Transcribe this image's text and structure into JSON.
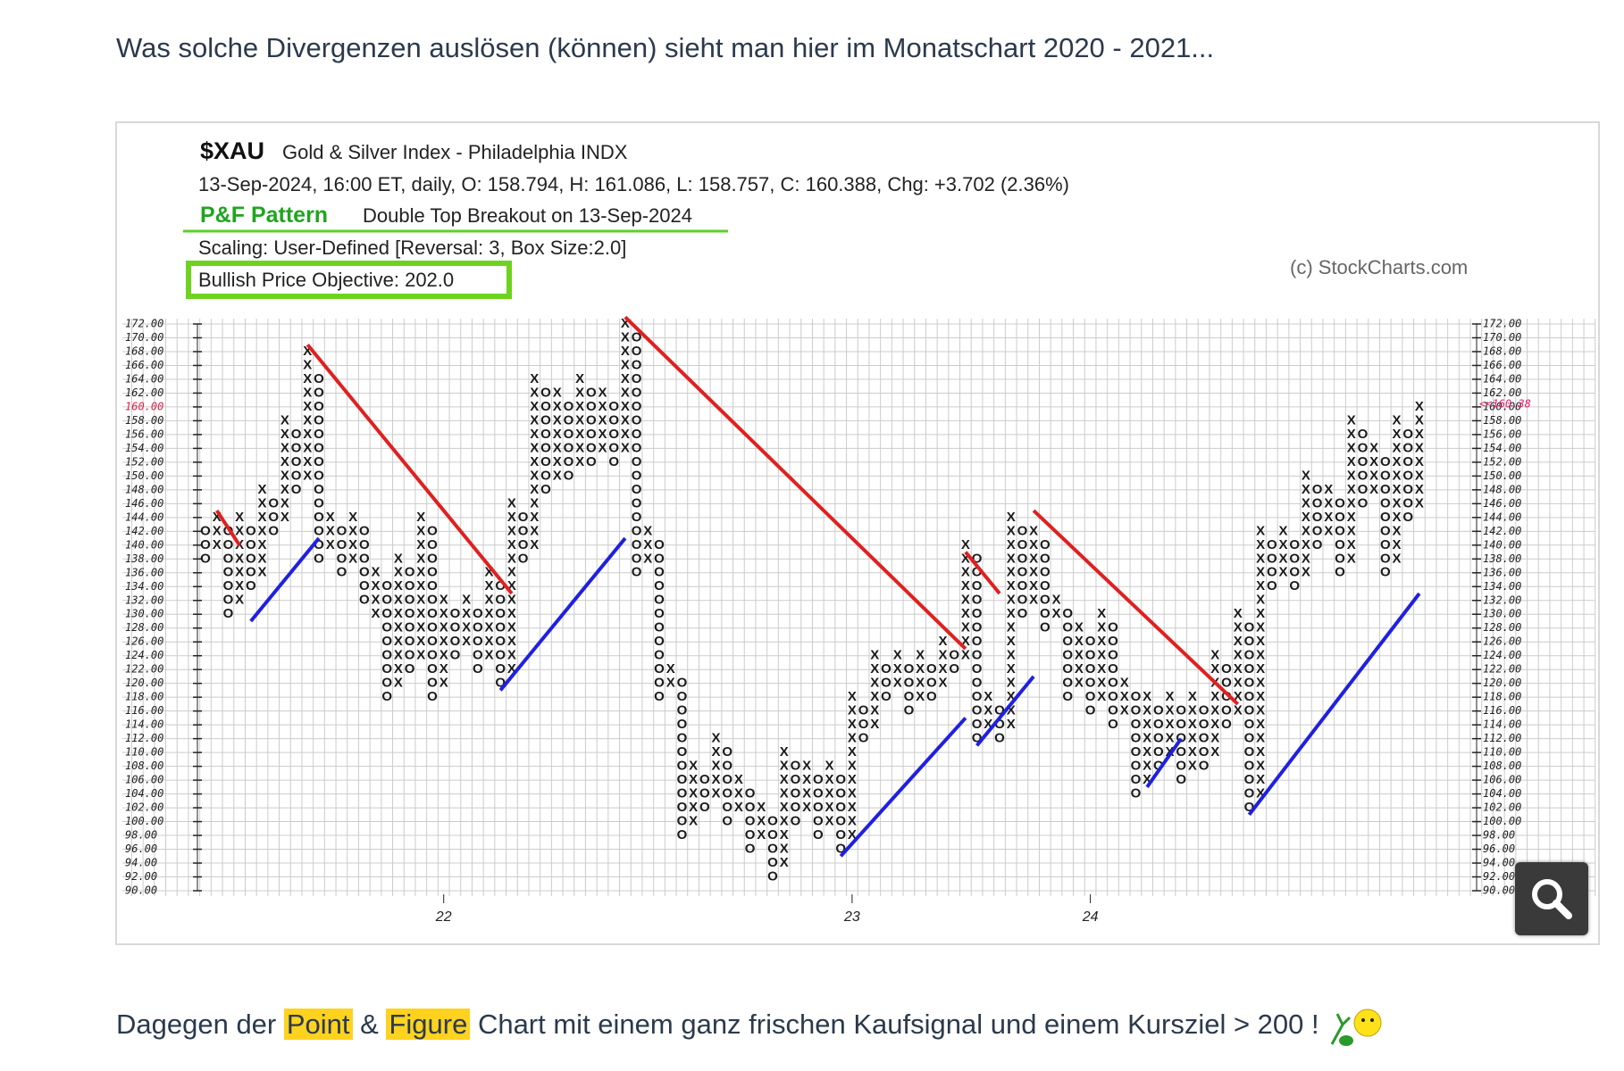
{
  "post": {
    "intro": "Was solche Divergenzen auslösen (können) sieht man hier im Monatschart 2020 - 2021...",
    "outro": [
      "Dagegen der ",
      "Point",
      " & ",
      "Figure",
      " Chart mit einem ganz frischen Kaufsignal und einem Kursziel > 200 !"
    ]
  },
  "chart_data": {
    "type": "pnf",
    "symbol": "$XAU",
    "name": "Gold & Silver Index - Philadelphia INDX",
    "info": "13-Sep-2024, 16:00 ET, daily, O: 158.794, H: 161.086, L: 158.757, C: 160.388, Chg: +3.702 (2.36%)",
    "pattern_label": "P&F Pattern",
    "pattern": "Double Top Breakout on 13-Sep-2024",
    "scaling": "Scaling: User-Defined [Reversal: 3, Box Size:2.0]",
    "objective": "Bullish Price Objective: 202.0",
    "credit": "(c) StockCharts.com",
    "box_size": 2,
    "ylim": [
      90,
      172
    ],
    "yticks": [
      {
        "value": 172,
        "label": "172.00"
      },
      {
        "value": 170,
        "label": "170.00"
      },
      {
        "value": 168,
        "label": "168.00"
      },
      {
        "value": 166,
        "label": "166.00"
      },
      {
        "value": 164,
        "label": "164.00"
      },
      {
        "value": 162,
        "label": "162.00"
      },
      {
        "value": 160,
        "label": "160.00"
      },
      {
        "value": 158,
        "label": "158.00"
      },
      {
        "value": 156,
        "label": "156.00"
      },
      {
        "value": 154,
        "label": "154.00"
      },
      {
        "value": 152,
        "label": "152.00"
      },
      {
        "value": 150,
        "label": "150.00"
      },
      {
        "value": 148,
        "label": "148.00"
      },
      {
        "value": 146,
        "label": "146.00"
      },
      {
        "value": 144,
        "label": "144.00"
      },
      {
        "value": 142,
        "label": "142.00"
      },
      {
        "value": 140,
        "label": "140.00"
      },
      {
        "value": 138,
        "label": "138.00"
      },
      {
        "value": 136,
        "label": "136.00"
      },
      {
        "value": 134,
        "label": "134.00"
      },
      {
        "value": 132,
        "label": "132.00"
      },
      {
        "value": 130,
        "label": "130.00"
      },
      {
        "value": 128,
        "label": "128.00"
      },
      {
        "value": 126,
        "label": "126.00"
      },
      {
        "value": 124,
        "label": "124.00"
      },
      {
        "value": 122,
        "label": "122.00"
      },
      {
        "value": 120,
        "label": "120.00"
      },
      {
        "value": 118,
        "label": "118.00"
      },
      {
        "value": 116,
        "label": "116.00"
      },
      {
        "value": 114,
        "label": "114.00"
      },
      {
        "value": 112,
        "label": "112.00"
      },
      {
        "value": 110,
        "label": "110.00"
      },
      {
        "value": 108,
        "label": "108.00"
      },
      {
        "value": 106,
        "label": "106.00"
      },
      {
        "value": 104,
        "label": "104.00"
      },
      {
        "value": 102,
        "label": "102.00"
      },
      {
        "value": 100,
        "label": "100.00"
      },
      {
        "value": 98,
        "label": "98.00"
      },
      {
        "value": 96,
        "label": "96.00"
      },
      {
        "value": 94,
        "label": "94.00"
      },
      {
        "value": 92,
        "label": "92.00"
      },
      {
        "value": 90,
        "label": "90.00"
      }
    ],
    "highlight_tick": 160,
    "price_marker": {
      "value": 160.38,
      "label": "<<160.38"
    },
    "xticks": [
      {
        "value": 21,
        "label": "22"
      },
      {
        "value": 57,
        "label": "23"
      },
      {
        "value": 78,
        "label": "24"
      }
    ],
    "columns": [
      {
        "type": "O",
        "low": 138,
        "high": 142
      },
      {
        "type": "X",
        "low": 140,
        "high": 144
      },
      {
        "type": "O",
        "low": 130,
        "high": 142
      },
      {
        "type": "X",
        "low": 132,
        "high": 144
      },
      {
        "type": "O",
        "low": 134,
        "high": 142
      },
      {
        "type": "X",
        "low": 136,
        "high": 148
      },
      {
        "type": "O",
        "low": 142,
        "high": 146
      },
      {
        "type": "X",
        "low": 144,
        "high": 158
      },
      {
        "type": "O",
        "low": 148,
        "high": 156
      },
      {
        "type": "X",
        "low": 150,
        "high": 168
      },
      {
        "type": "O",
        "low": 138,
        "high": 164
      },
      {
        "type": "X",
        "low": 140,
        "high": 144
      },
      {
        "type": "O",
        "low": 136,
        "high": 142
      },
      {
        "type": "X",
        "low": 138,
        "high": 144
      },
      {
        "type": "O",
        "low": 132,
        "high": 142
      },
      {
        "type": "X",
        "low": 130,
        "high": 136
      },
      {
        "type": "O",
        "low": 118,
        "high": 134
      },
      {
        "type": "X",
        "low": 120,
        "high": 138
      },
      {
        "type": "O",
        "low": 122,
        "high": 136
      },
      {
        "type": "X",
        "low": 124,
        "high": 144
      },
      {
        "type": "O",
        "low": 118,
        "high": 142
      },
      {
        "type": "X",
        "low": 120,
        "high": 132
      },
      {
        "type": "O",
        "low": 124,
        "high": 130
      },
      {
        "type": "X",
        "low": 126,
        "high": 132
      },
      {
        "type": "O",
        "low": 122,
        "high": 130
      },
      {
        "type": "X",
        "low": 124,
        "high": 136
      },
      {
        "type": "O",
        "low": 120,
        "high": 134
      },
      {
        "type": "X",
        "low": 122,
        "high": 146
      },
      {
        "type": "O",
        "low": 138,
        "high": 144
      },
      {
        "type": "X",
        "low": 140,
        "high": 164
      },
      {
        "type": "O",
        "low": 148,
        "high": 162
      },
      {
        "type": "X",
        "low": 150,
        "high": 162
      },
      {
        "type": "O",
        "low": 150,
        "high": 160
      },
      {
        "type": "X",
        "low": 152,
        "high": 164
      },
      {
        "type": "O",
        "low": 152,
        "high": 162
      },
      {
        "type": "X",
        "low": 154,
        "high": 162
      },
      {
        "type": "O",
        "low": 152,
        "high": 160
      },
      {
        "type": "X",
        "low": 154,
        "high": 172
      },
      {
        "type": "O",
        "low": 136,
        "high": 170
      },
      {
        "type": "X",
        "low": 138,
        "high": 142
      },
      {
        "type": "O",
        "low": 118,
        "high": 140
      },
      {
        "type": "X",
        "low": 120,
        "high": 122
      },
      {
        "type": "O",
        "low": 98,
        "high": 120
      },
      {
        "type": "X",
        "low": 100,
        "high": 108
      },
      {
        "type": "O",
        "low": 102,
        "high": 106
      },
      {
        "type": "X",
        "low": 104,
        "high": 112
      },
      {
        "type": "O",
        "low": 100,
        "high": 110
      },
      {
        "type": "X",
        "low": 102,
        "high": 106
      },
      {
        "type": "O",
        "low": 96,
        "high": 104
      },
      {
        "type": "X",
        "low": 98,
        "high": 102
      },
      {
        "type": "O",
        "low": 92,
        "high": 100
      },
      {
        "type": "X",
        "low": 94,
        "high": 110
      },
      {
        "type": "O",
        "low": 100,
        "high": 108
      },
      {
        "type": "X",
        "low": 102,
        "high": 108
      },
      {
        "type": "O",
        "low": 98,
        "high": 106
      },
      {
        "type": "X",
        "low": 100,
        "high": 108
      },
      {
        "type": "O",
        "low": 96,
        "high": 106
      },
      {
        "type": "X",
        "low": 98,
        "high": 118
      },
      {
        "type": "O",
        "low": 112,
        "high": 116
      },
      {
        "type": "X",
        "low": 114,
        "high": 124
      },
      {
        "type": "O",
        "low": 118,
        "high": 122
      },
      {
        "type": "X",
        "low": 120,
        "high": 124
      },
      {
        "type": "O",
        "low": 116,
        "high": 122
      },
      {
        "type": "X",
        "low": 118,
        "high": 124
      },
      {
        "type": "O",
        "low": 118,
        "high": 122
      },
      {
        "type": "X",
        "low": 120,
        "high": 126
      },
      {
        "type": "O",
        "low": 122,
        "high": 124
      },
      {
        "type": "X",
        "low": 124,
        "high": 140
      },
      {
        "type": "O",
        "low": 112,
        "high": 138
      },
      {
        "type": "X",
        "low": 114,
        "high": 118
      },
      {
        "type": "O",
        "low": 112,
        "high": 116
      },
      {
        "type": "X",
        "low": 114,
        "high": 144
      },
      {
        "type": "O",
        "low": 130,
        "high": 142
      },
      {
        "type": "X",
        "low": 132,
        "high": 142
      },
      {
        "type": "O",
        "low": 128,
        "high": 140
      },
      {
        "type": "X",
        "low": 130,
        "high": 132
      },
      {
        "type": "O",
        "low": 118,
        "high": 130
      },
      {
        "type": "X",
        "low": 120,
        "high": 128
      },
      {
        "type": "O",
        "low": 116,
        "high": 126
      },
      {
        "type": "X",
        "low": 118,
        "high": 130
      },
      {
        "type": "O",
        "low": 114,
        "high": 128
      },
      {
        "type": "X",
        "low": 116,
        "high": 120
      },
      {
        "type": "O",
        "low": 104,
        "high": 118
      },
      {
        "type": "X",
        "low": 106,
        "high": 118
      },
      {
        "type": "O",
        "low": 108,
        "high": 116
      },
      {
        "type": "X",
        "low": 110,
        "high": 118
      },
      {
        "type": "O",
        "low": 106,
        "high": 116
      },
      {
        "type": "X",
        "low": 108,
        "high": 118
      },
      {
        "type": "O",
        "low": 108,
        "high": 116
      },
      {
        "type": "X",
        "low": 110,
        "high": 124
      },
      {
        "type": "O",
        "low": 114,
        "high": 122
      },
      {
        "type": "X",
        "low": 116,
        "high": 130
      },
      {
        "type": "O",
        "low": 102,
        "high": 128
      },
      {
        "type": "X",
        "low": 104,
        "high": 142
      },
      {
        "type": "O",
        "low": 134,
        "high": 140
      },
      {
        "type": "X",
        "low": 136,
        "high": 142
      },
      {
        "type": "O",
        "low": 134,
        "high": 140
      },
      {
        "type": "X",
        "low": 136,
        "high": 150
      },
      {
        "type": "O",
        "low": 140,
        "high": 148
      },
      {
        "type": "X",
        "low": 142,
        "high": 148
      },
      {
        "type": "O",
        "low": 136,
        "high": 146
      },
      {
        "type": "X",
        "low": 138,
        "high": 158
      },
      {
        "type": "O",
        "low": 146,
        "high": 156
      },
      {
        "type": "X",
        "low": 148,
        "high": 154
      },
      {
        "type": "O",
        "low": 136,
        "high": 152
      },
      {
        "type": "X",
        "low": 138,
        "high": 158
      },
      {
        "type": "O",
        "low": 144,
        "high": 156
      },
      {
        "type": "X",
        "low": 146,
        "high": 160
      }
    ],
    "trendlines": [
      {
        "color": "#e02020",
        "from": [
          1,
          145
        ],
        "to": [
          3,
          140
        ]
      },
      {
        "color": "#e02020",
        "from": [
          9,
          169
        ],
        "to": [
          27,
          133
        ]
      },
      {
        "color": "#e02020",
        "from": [
          37,
          173
        ],
        "to": [
          67,
          125
        ]
      },
      {
        "color": "#e02020",
        "from": [
          67,
          139
        ],
        "to": [
          70,
          133
        ]
      },
      {
        "color": "#e02020",
        "from": [
          73,
          145
        ],
        "to": [
          91,
          117
        ]
      },
      {
        "color": "#2020e0",
        "from": [
          4,
          129
        ],
        "to": [
          10,
          141
        ]
      },
      {
        "color": "#2020e0",
        "from": [
          26,
          119
        ],
        "to": [
          37,
          141
        ]
      },
      {
        "color": "#2020e0",
        "from": [
          56,
          95
        ],
        "to": [
          67,
          115
        ]
      },
      {
        "color": "#2020e0",
        "from": [
          68,
          111
        ],
        "to": [
          73,
          121
        ]
      },
      {
        "color": "#2020e0",
        "from": [
          83,
          105
        ],
        "to": [
          86,
          112
        ]
      },
      {
        "color": "#2020e0",
        "from": [
          92,
          101
        ],
        "to": [
          107,
          133
        ]
      }
    ]
  }
}
